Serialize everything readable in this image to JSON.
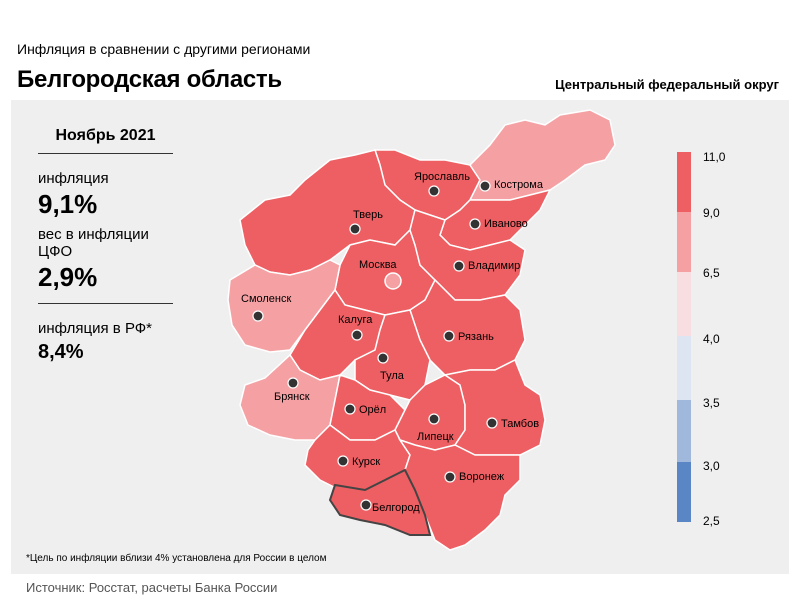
{
  "header": {
    "subtitle": "Инфляция  в сравнении  с другими регионами",
    "title": "Белгородская  область",
    "district": "Центральный федеральный округ"
  },
  "sidebar": {
    "month": "Ноябрь 2021",
    "inflation_label": "инфляция",
    "inflation_value": "9,1%",
    "weight_label": "вес в инфляции  ЦФО",
    "weight_value": "2,9%",
    "rf_label": "инфляция  в РФ*",
    "rf_value": "8,4%"
  },
  "legend": {
    "ticks": [
      "11,0",
      "9,0",
      "6,5",
      "4,0",
      "3,5",
      "3,0",
      "2,5"
    ],
    "colors": [
      "#ee5f63",
      "#f5a1a4",
      "#f8dde1",
      "#dde5f2",
      "#9fb8dc",
      "#5a86c5"
    ]
  },
  "regions": [
    {
      "name": "Ярославль",
      "color": "#ee5f63"
    },
    {
      "name": "Кострома",
      "color": "#f5a1a4"
    },
    {
      "name": "Тверь",
      "color": "#ee5f63"
    },
    {
      "name": "Иваново",
      "color": "#ee5f63"
    },
    {
      "name": "Москва",
      "color": "#ee5f63"
    },
    {
      "name": "Владимир",
      "color": "#ee5f63"
    },
    {
      "name": "Смоленск",
      "color": "#f5a1a4"
    },
    {
      "name": "Калуга",
      "color": "#ee5f63"
    },
    {
      "name": "Рязань",
      "color": "#ee5f63"
    },
    {
      "name": "Тула",
      "color": "#ee5f63"
    },
    {
      "name": "Брянск",
      "color": "#f5a1a4"
    },
    {
      "name": "Орёл",
      "color": "#ee5f63"
    },
    {
      "name": "Липецк",
      "color": "#ee5f63"
    },
    {
      "name": "Тамбов",
      "color": "#ee5f63"
    },
    {
      "name": "Курск",
      "color": "#ee5f63"
    },
    {
      "name": "Воронеж",
      "color": "#ee5f63"
    },
    {
      "name": "Белгород",
      "color": "#ee5f63"
    }
  ],
  "footnote": "*Цель по инфляции вблизи 4% установлена для России в целом",
  "source": "Источник: Росстат, расчеты  Банка России"
}
